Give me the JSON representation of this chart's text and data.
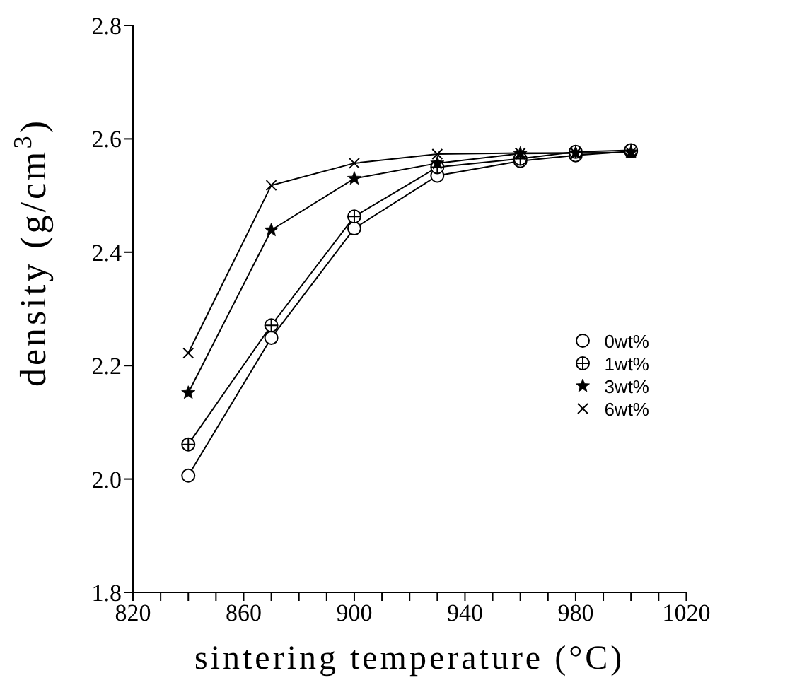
{
  "chart_data": {
    "type": "line",
    "xlabel": "sintering temperature (°C)",
    "ylabel": "density (g/cm$^{3}$)",
    "x": [
      840,
      870,
      900,
      930,
      960,
      980,
      1000
    ],
    "series": [
      {
        "name": "0wt%",
        "color": "#000000",
        "marker": "circle",
        "values": [
          2.006,
          2.249,
          2.442,
          2.535,
          2.561,
          2.571,
          2.578
        ]
      },
      {
        "name": "1wt%",
        "color": "#000000",
        "marker": "circle-plus",
        "values": [
          2.061,
          2.271,
          2.463,
          2.55,
          2.565,
          2.577,
          2.58
        ]
      },
      {
        "name": "3wt%",
        "color": "#000000",
        "marker": "star",
        "values": [
          2.152,
          2.439,
          2.53,
          2.557,
          2.574,
          2.575,
          2.576
        ]
      },
      {
        "name": "6wt%",
        "color": "#000000",
        "marker": "cross",
        "values": [
          2.222,
          2.518,
          2.557,
          2.573,
          2.575,
          2.575,
          2.576
        ]
      }
    ],
    "xlim": [
      820,
      1020
    ],
    "xticks": [
      820,
      {
        "value": 830,
        "label": null
      },
      860,
      {
        "value": 840,
        "label": null
      },
      {
        "value": 850,
        "label": null
      },
      {
        "value": 870,
        "label": null
      },
      {
        "value": 880,
        "label": null
      },
      {
        "value": 890,
        "label": null
      },
      900,
      {
        "value": 910,
        "label": null
      },
      {
        "value": 920,
        "label": null
      },
      {
        "value": 930,
        "label": null
      },
      940,
      {
        "value": 950,
        "label": null
      },
      {
        "value": 960,
        "label": null
      },
      {
        "value": 970,
        "label": null
      },
      980,
      {
        "value": 990,
        "label": null
      },
      {
        "value": 1000,
        "label": null
      },
      {
        "value": 1010,
        "label": null
      },
      1020
    ],
    "ylim": [
      1.8,
      2.8
    ],
    "yticks": [
      1.8,
      {
        "value": 2,
        "label": "2.0"
      },
      2.2,
      2.4,
      2.6,
      2.8
    ],
    "grid": false,
    "legend": "right",
    "line_style": "solid"
  }
}
